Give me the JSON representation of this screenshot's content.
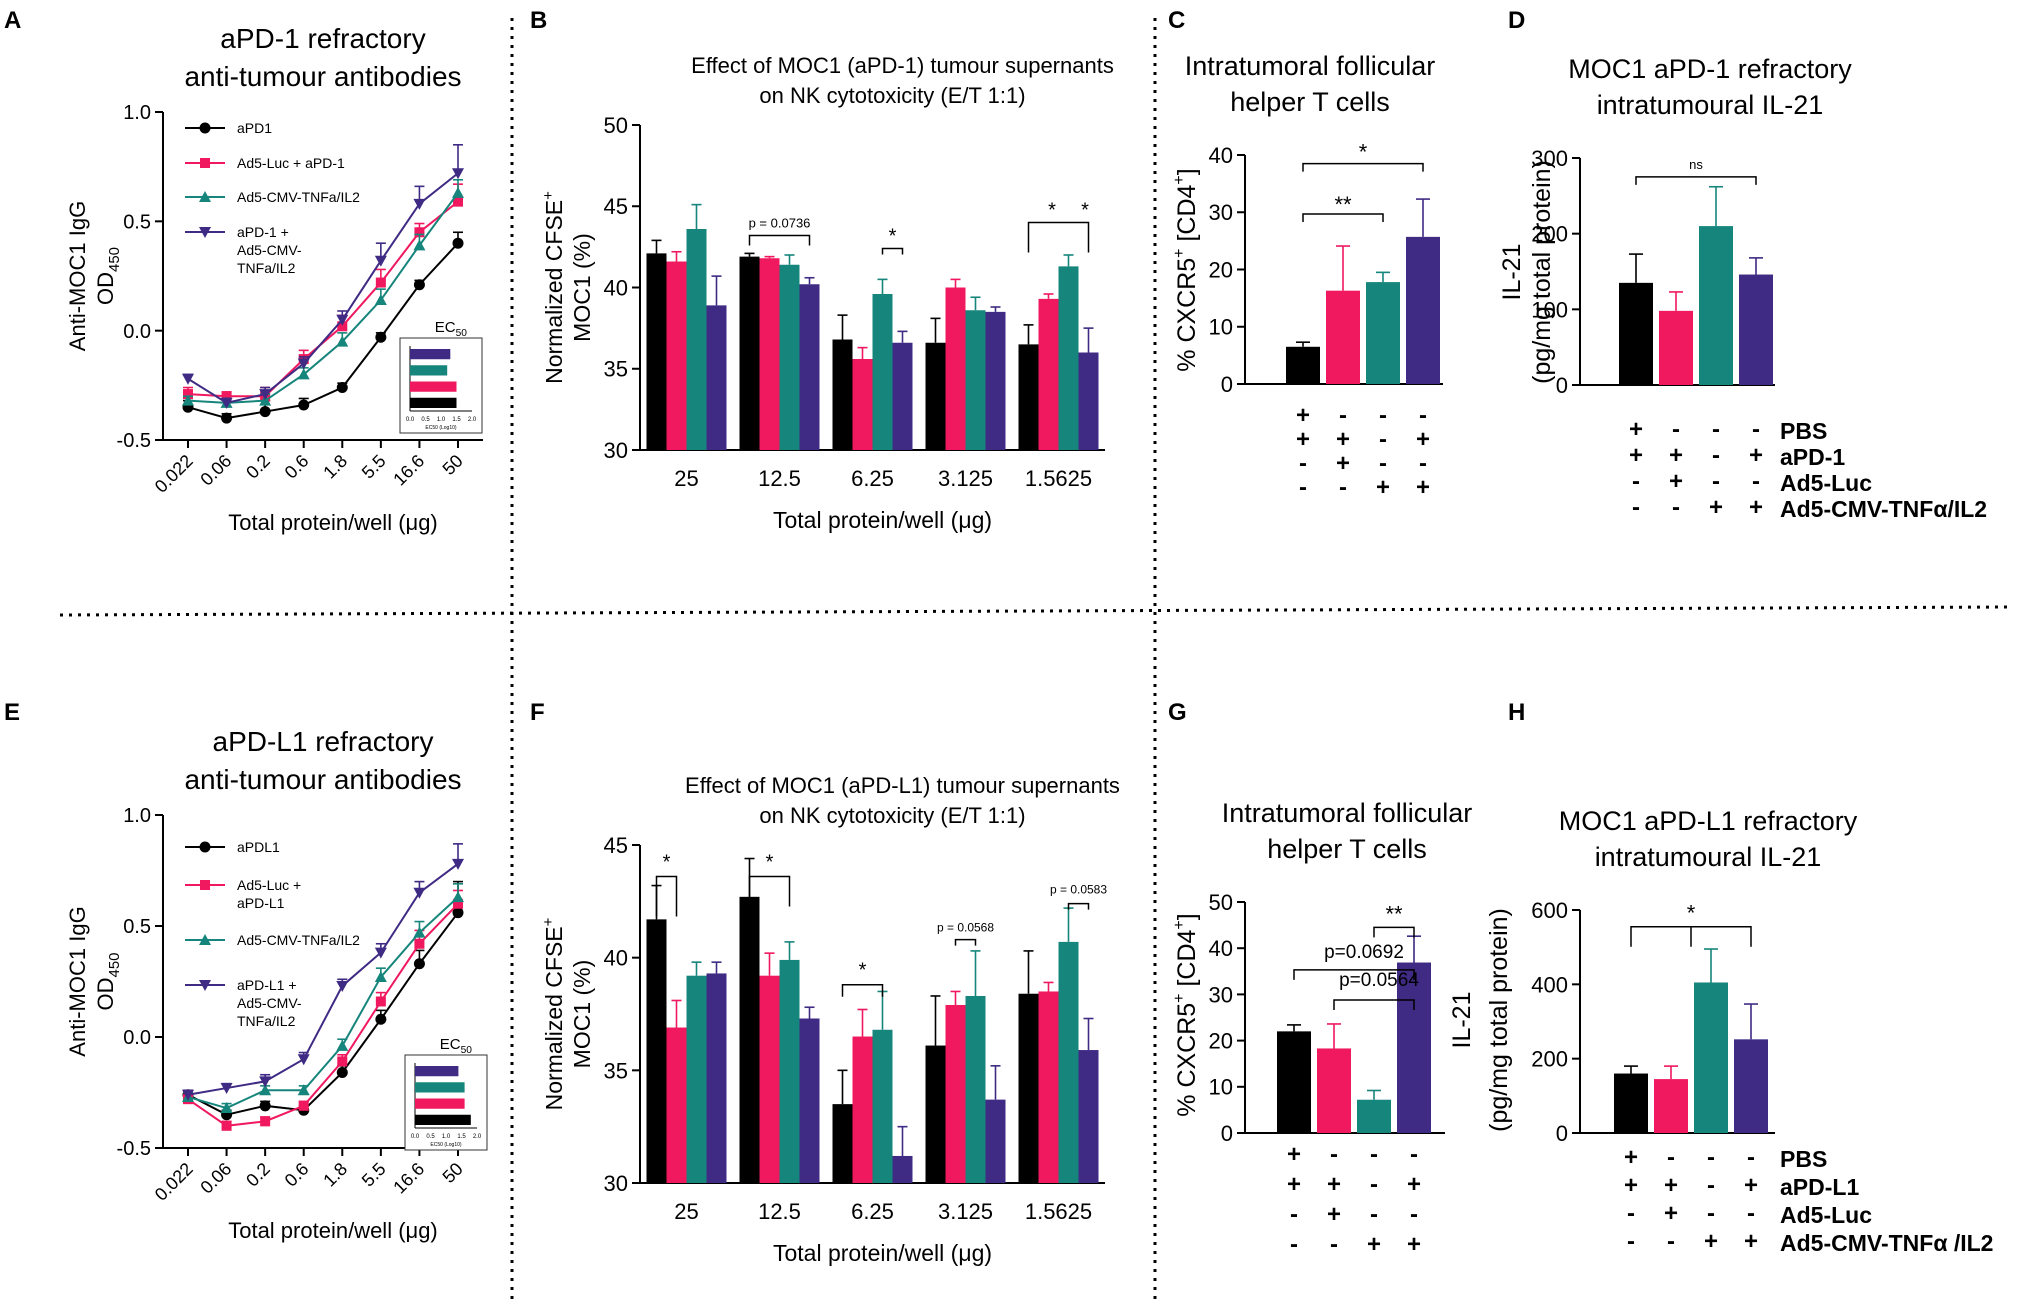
{
  "colors": {
    "black": "#000000",
    "pink": "#f0185e",
    "teal": "#16857b",
    "purple": "#3f2a84"
  },
  "legend_ec50": "EC50",
  "legend_ec50_axis": "EC50 (Log10)",
  "ec50_ticks": [
    "0.0",
    "0.5",
    "1.0",
    "1.5",
    "2.0"
  ],
  "ec50_values_A": [
    1.3,
    1.2,
    1.5,
    1.5
  ],
  "ec50_values_E": [
    1.4,
    1.6,
    1.6,
    1.8
  ],
  "sig_labels": {
    "star": "*",
    "double": "**",
    "ns": "ns"
  },
  "chart_data": [
    {
      "panel": "A",
      "type": "line",
      "title": [
        "aPD-1 refractory",
        "anti-tumour antibodies"
      ],
      "ylabel": [
        "Anti-MOC1 IgG",
        "OD450"
      ],
      "xlabel": "Total protein/well (μg)",
      "ylim": [
        -0.5,
        1.0
      ],
      "yticks": [
        "-0.5",
        "0.0",
        "0.5",
        "1.0"
      ],
      "categories": [
        "0.022",
        "0.06",
        "0.2",
        "0.6",
        "1.8",
        "5.5",
        "16.6",
        "50"
      ],
      "series": [
        {
          "name": "aPD1",
          "values": [
            -0.35,
            -0.4,
            -0.37,
            -0.34,
            -0.26,
            -0.03,
            0.21,
            0.4
          ],
          "errors": [
            0.03,
            0.02,
            0.05,
            0.03,
            0.02,
            0.02,
            0.02,
            0.05
          ]
        },
        {
          "name": "Ad5-Luc + aPD-1",
          "values": [
            -0.29,
            -0.3,
            -0.3,
            -0.13,
            0.02,
            0.22,
            0.45,
            0.59
          ],
          "errors": [
            0.03,
            0.02,
            0.04,
            0.04,
            0.05,
            0.06,
            0.04,
            0.08
          ]
        },
        {
          "name": "Ad5-CMV-TNFa/IL2",
          "values": [
            -0.32,
            -0.33,
            -0.32,
            -0.2,
            -0.05,
            0.14,
            0.39,
            0.63
          ],
          "errors": [
            0.02,
            0.02,
            0.03,
            0.03,
            0.04,
            0.05,
            0.05,
            0.06
          ]
        },
        {
          "name": "aPD-1 + Ad5-CMV-TNFa/IL2",
          "values": [
            -0.22,
            -0.33,
            -0.29,
            -0.15,
            0.05,
            0.32,
            0.58,
            0.72
          ],
          "errors": [
            0.02,
            0.02,
            0.03,
            0.03,
            0.04,
            0.08,
            0.08,
            0.13
          ]
        }
      ]
    },
    {
      "panel": "B",
      "type": "bar",
      "title": [
        "Effect of MOC1 (aPD-1) tumour supernants",
        "on NK cytotoxicity (E/T 1:1)"
      ],
      "ylabel": "Normalized CFSE+ MOC1 (%)",
      "xlabel": "Total protein/well (μg)",
      "ylim": [
        30,
        50
      ],
      "yticks": [
        "30",
        "35",
        "40",
        "45",
        "50"
      ],
      "categories": [
        "25",
        "12.5",
        "6.25",
        "3.125",
        "1.5625"
      ],
      "series": [
        {
          "name": "aPD1",
          "values": [
            42.1,
            41.9,
            36.8,
            36.6,
            36.5
          ],
          "errors": [
            0.8,
            0.2,
            1.5,
            1.5,
            1.2
          ]
        },
        {
          "name": "Ad5-Luc + aPD-1",
          "values": [
            41.6,
            41.8,
            35.6,
            40.0,
            39.3
          ],
          "errors": [
            0.6,
            0.1,
            0.7,
            0.5,
            0.3
          ]
        },
        {
          "name": "Ad5-CMV-TNFa/IL2",
          "values": [
            43.6,
            41.4,
            39.6,
            38.6,
            41.3
          ],
          "errors": [
            1.5,
            0.6,
            0.9,
            0.8,
            0.7
          ]
        },
        {
          "name": "aPD-1 + Ad5-CMV-TNFa/IL2",
          "values": [
            38.9,
            40.2,
            36.6,
            38.5,
            36.0
          ],
          "errors": [
            1.8,
            0.4,
            0.7,
            0.3,
            1.5
          ]
        }
      ],
      "annotations": [
        "p = 0.0736",
        "*",
        "*",
        "*"
      ]
    },
    {
      "panel": "C",
      "type": "bar",
      "title": [
        "Intratumoral follicular",
        "helper T cells"
      ],
      "ylabel": "% CXCR5+ [CD4+]",
      "ylim": [
        0,
        40
      ],
      "yticks": [
        "0",
        "10",
        "20",
        "30",
        "40"
      ],
      "categories": [
        "PBS",
        "aPD-1",
        "Ad5-Luc",
        "Ad5-CMV-TNFα/IL2"
      ],
      "groups": [
        "PBS + aPD-1",
        "aPD-1 + Ad5-Luc",
        "Ad5-CMV-TNFα/IL2",
        "aPD-1 + Ad5-CMV-TNFα/IL2"
      ],
      "values": [
        6.5,
        16.3,
        17.8,
        25.7
      ],
      "errors": [
        0.8,
        7.8,
        1.7,
        6.6
      ],
      "design": [
        [
          "+",
          "-",
          "-",
          "-"
        ],
        [
          "+",
          "+",
          "-",
          "+"
        ],
        [
          "-",
          "+",
          "-",
          "-"
        ],
        [
          "-",
          "-",
          "+",
          "+"
        ]
      ],
      "annotations": [
        "**",
        "*"
      ]
    },
    {
      "panel": "D",
      "type": "bar",
      "title": [
        "MOC1 aPD-1 refractory",
        "intratumoural IL-21"
      ],
      "ylabel": [
        "IL-21",
        "(pg/mg total protein)"
      ],
      "ylim": [
        0,
        300
      ],
      "yticks": [
        "0",
        "100",
        "200",
        "300"
      ],
      "categories": [
        "PBS",
        "aPD-1",
        "Ad5-Luc",
        "Ad5-CMV-TNFα/IL2"
      ],
      "values": [
        135,
        98,
        210,
        146
      ],
      "errors": [
        38,
        25,
        52,
        22
      ],
      "design": [
        [
          "+",
          "-",
          "-",
          "-"
        ],
        [
          "+",
          "+",
          "-",
          "+"
        ],
        [
          "-",
          "+",
          "-",
          "-"
        ],
        [
          "-",
          "-",
          "+",
          "+"
        ]
      ],
      "annotations": [
        "ns"
      ]
    },
    {
      "panel": "E",
      "type": "line",
      "title": [
        "aPD-L1 refractory",
        "anti-tumour antibodies"
      ],
      "ylabel": [
        "Anti-MOC1 IgG",
        "OD450"
      ],
      "xlabel": "Total protein/well (μg)",
      "ylim": [
        -0.5,
        1.0
      ],
      "yticks": [
        "-0.5",
        "0.0",
        "0.5",
        "1.0"
      ],
      "categories": [
        "0.022",
        "0.06",
        "0.2",
        "0.6",
        "1.8",
        "5.5",
        "16.6",
        "50"
      ],
      "series": [
        {
          "name": "aPDL1",
          "values": [
            -0.26,
            -0.35,
            -0.31,
            -0.33,
            -0.16,
            0.08,
            0.33,
            0.56
          ],
          "errors": [
            0.02,
            0.02,
            0.02,
            0.02,
            0.03,
            0.04,
            0.06,
            0.14
          ]
        },
        {
          "name": "Ad5-Luc + aPD-L1",
          "values": [
            -0.28,
            -0.4,
            -0.38,
            -0.31,
            -0.11,
            0.16,
            0.42,
            0.6
          ],
          "errors": [
            0.02,
            0.02,
            0.02,
            0.02,
            0.03,
            0.04,
            0.06,
            0.06
          ]
        },
        {
          "name": "Ad5-CMV-TNFa/IL2",
          "values": [
            -0.27,
            -0.32,
            -0.24,
            -0.24,
            -0.04,
            0.27,
            0.47,
            0.63
          ],
          "errors": [
            0.02,
            0.02,
            0.02,
            0.02,
            0.03,
            0.04,
            0.05,
            0.06
          ]
        },
        {
          "name": "aPD-L1 + Ad5-CMV-TNFa/IL2",
          "values": [
            -0.26,
            -0.23,
            -0.2,
            -0.1,
            0.23,
            0.38,
            0.65,
            0.78
          ],
          "errors": [
            0.02,
            0.02,
            0.03,
            0.03,
            0.03,
            0.04,
            0.05,
            0.09
          ]
        }
      ]
    },
    {
      "panel": "F",
      "type": "bar",
      "title": [
        "Effect of MOC1 (aPD-L1) tumour supernants",
        "on NK cytotoxicity (E/T 1:1)"
      ],
      "ylabel": "Normalized CFSE+ MOC1 (%)",
      "xlabel": "Total protein/well (μg)",
      "ylim": [
        30,
        45
      ],
      "yticks": [
        "30",
        "35",
        "40",
        "45"
      ],
      "categories": [
        "25",
        "12.5",
        "6.25",
        "3.125",
        "1.5625"
      ],
      "series": [
        {
          "name": "aPDL1",
          "values": [
            41.7,
            42.7,
            33.5,
            36.1,
            38.4
          ],
          "errors": [
            1.5,
            1.7,
            1.5,
            2.2,
            1.9
          ]
        },
        {
          "name": "Ad5-Luc + aPD-L1",
          "values": [
            36.9,
            39.2,
            36.5,
            37.9,
            38.5
          ],
          "errors": [
            1.2,
            1.0,
            1.2,
            0.6,
            0.4
          ]
        },
        {
          "name": "Ad5-CMV-TNFa/IL2",
          "values": [
            39.2,
            39.9,
            36.8,
            38.3,
            40.7
          ],
          "errors": [
            0.6,
            0.8,
            1.7,
            2.0,
            1.5
          ]
        },
        {
          "name": "aPD-L1 + Ad5-CMV-TNFa/IL2",
          "values": [
            39.3,
            37.3,
            31.2,
            33.7,
            35.9
          ],
          "errors": [
            0.5,
            0.5,
            1.3,
            1.5,
            1.4
          ]
        }
      ],
      "annotations": [
        "*",
        "*",
        "*",
        "p = 0.0568",
        "p = 0.0583"
      ]
    },
    {
      "panel": "G",
      "type": "bar",
      "title": [
        "Intratumoral follicular",
        "helper T cells"
      ],
      "ylabel": "% CXCR5+ [CD4+]",
      "ylim": [
        0,
        50
      ],
      "yticks": [
        "0",
        "10",
        "20",
        "30",
        "40",
        "50"
      ],
      "categories": [
        "PBS",
        "aPD-L1",
        "Ad5-Luc",
        "Ad5-CMV-TNFα /IL2"
      ],
      "values": [
        22.0,
        18.3,
        7.2,
        36.9
      ],
      "errors": [
        1.4,
        5.3,
        2.0,
        5.7
      ],
      "design": [
        [
          "+",
          "-",
          "-",
          "-"
        ],
        [
          "+",
          "+",
          "-",
          "+"
        ],
        [
          "-",
          "+",
          "-",
          "-"
        ],
        [
          "-",
          "-",
          "+",
          "+"
        ]
      ],
      "annotations": [
        "**",
        "p=0.0692",
        "p=0.0564"
      ]
    },
    {
      "panel": "H",
      "type": "bar",
      "title": [
        "MOC1 aPD-L1 refractory",
        "intratumoural IL-21"
      ],
      "ylabel": [
        "IL-21",
        "(pg/mg total protein)"
      ],
      "ylim": [
        0,
        600
      ],
      "yticks": [
        "0",
        "200",
        "400",
        "600"
      ],
      "categories": [
        "PBS",
        "aPD-L1",
        "Ad5-Luc",
        "Ad5-CMV-TNFα /IL2"
      ],
      "values": [
        160,
        145,
        405,
        252
      ],
      "errors": [
        20,
        35,
        90,
        95
      ],
      "design": [
        [
          "+",
          "-",
          "-",
          "-"
        ],
        [
          "+",
          "+",
          "-",
          "+"
        ],
        [
          "-",
          "+",
          "-",
          "-"
        ],
        [
          "-",
          "-",
          "+",
          "+"
        ]
      ],
      "annotations": [
        "*"
      ]
    }
  ]
}
